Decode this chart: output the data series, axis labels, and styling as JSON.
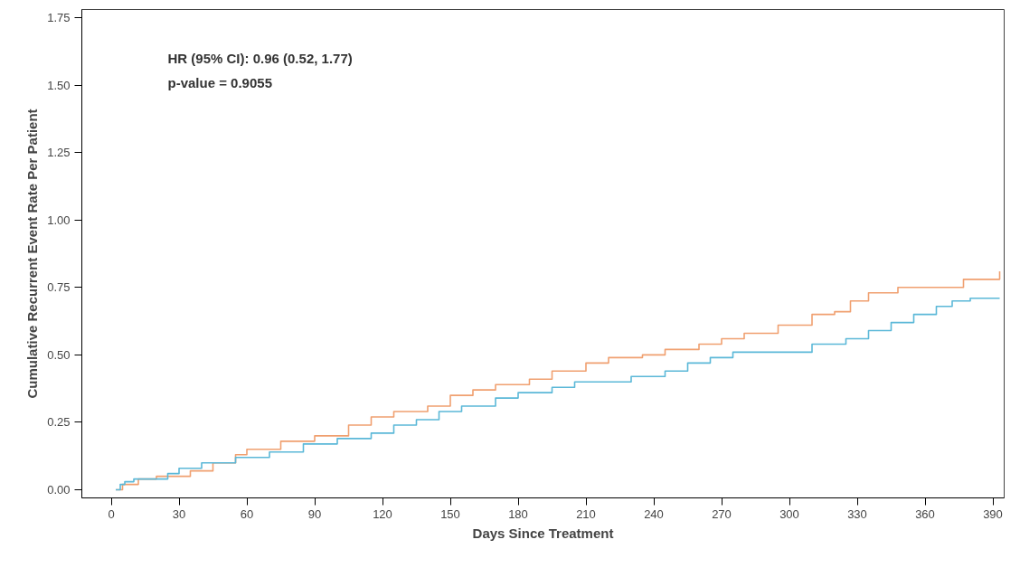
{
  "chart_data": {
    "type": "step",
    "xlabel": "Days Since Treatment",
    "ylabel": "Cumulative Recurrent Event Rate Per Patient",
    "xlim": [
      -13,
      395
    ],
    "ylim": [
      -0.03,
      1.78
    ],
    "xticks": [
      0,
      30,
      60,
      90,
      120,
      150,
      180,
      210,
      240,
      270,
      300,
      330,
      360,
      390
    ],
    "yticks": [
      {
        "value": 0,
        "label": "0.00"
      },
      {
        "value": 0.25,
        "label": "0.25"
      },
      {
        "value": 0.5,
        "label": "0.50"
      },
      {
        "value": 0.75,
        "label": "0.75"
      },
      {
        "value": 1,
        "label": "1.00"
      },
      {
        "value": 1.25,
        "label": "1.25"
      },
      {
        "value": 1.5,
        "label": "1.50"
      },
      {
        "value": 1.75,
        "label": "1.75"
      }
    ],
    "grid": false,
    "line_style": "solid",
    "marker": "none",
    "annotations": [
      "HR (95% CI): 0.96 (0.52, 1.77)",
      "p-value = 0.9055"
    ],
    "series": [
      {
        "color": "#f0a070",
        "x": [
          2,
          5,
          12,
          20,
          35,
          45,
          55,
          60,
          75,
          90,
          105,
          115,
          125,
          140,
          150,
          160,
          170,
          185,
          195,
          210,
          220,
          235,
          245,
          260,
          270,
          280,
          295,
          310,
          320,
          327,
          335,
          348,
          375,
          377,
          393
        ],
        "values": [
          0,
          0.02,
          0.04,
          0.05,
          0.07,
          0.1,
          0.13,
          0.15,
          0.18,
          0.2,
          0.24,
          0.27,
          0.29,
          0.31,
          0.35,
          0.37,
          0.39,
          0.41,
          0.44,
          0.47,
          0.49,
          0.5,
          0.52,
          0.54,
          0.56,
          0.58,
          0.61,
          0.65,
          0.66,
          0.7,
          0.73,
          0.75,
          0.75,
          0.78,
          0.81
        ]
      },
      {
        "color": "#5bb8d8",
        "x": [
          2,
          4,
          6,
          10,
          25,
          30,
          40,
          55,
          70,
          85,
          100,
          115,
          125,
          135,
          145,
          155,
          170,
          180,
          195,
          205,
          230,
          245,
          255,
          265,
          275,
          305,
          310,
          325,
          335,
          345,
          355,
          365,
          372,
          380,
          393
        ],
        "values": [
          0,
          0.02,
          0.03,
          0.04,
          0.06,
          0.08,
          0.1,
          0.12,
          0.14,
          0.17,
          0.19,
          0.21,
          0.24,
          0.26,
          0.29,
          0.31,
          0.34,
          0.36,
          0.38,
          0.4,
          0.42,
          0.44,
          0.47,
          0.49,
          0.51,
          0.51,
          0.54,
          0.56,
          0.59,
          0.62,
          0.65,
          0.68,
          0.7,
          0.71,
          0.71
        ]
      }
    ]
  }
}
